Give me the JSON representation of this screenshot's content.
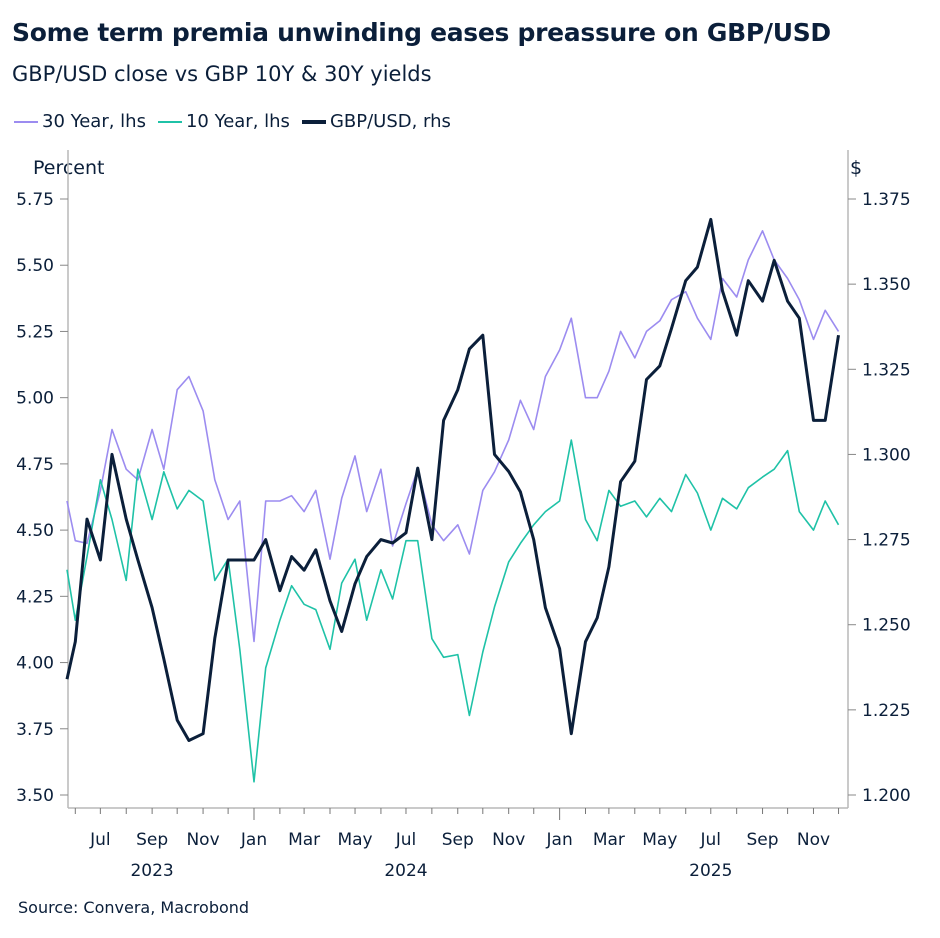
{
  "header": {
    "title": "Some term premia unwinding eases preassure on GBP/USD",
    "subtitle": "GBP/USD close vs GBP 10Y & 30Y yields"
  },
  "source": "Source: Convera, Macrobond",
  "colors": {
    "y30": "#9c8cf0",
    "y10": "#1fc2a7",
    "gbpusd": "#0b1f3a",
    "axis": "#b8b8b8"
  },
  "chart_data": {
    "type": "line",
    "title": "Some term premia unwinding eases preassure on GBP/USD",
    "subtitle": "GBP/USD close vs GBP 10Y & 30Y yields",
    "legend_position": "top-left",
    "grid": false,
    "left_axis": {
      "label": "Percent",
      "range": [
        3.5,
        5.75
      ],
      "ticks": [
        "5.75",
        "5.50",
        "5.25",
        "5.00",
        "4.75",
        "4.50",
        "4.25",
        "4.00",
        "3.75",
        "3.50"
      ]
    },
    "right_axis": {
      "label": "$",
      "range": [
        1.2,
        1.375
      ],
      "ticks": [
        "1.375",
        "1.350",
        "1.325",
        "1.300",
        "1.275",
        "1.250",
        "1.225",
        "1.200"
      ]
    },
    "x_ticks": [
      {
        "label": "Jul",
        "date": "2023-07-01"
      },
      {
        "label": "Sep",
        "date": "2023-09-01"
      },
      {
        "label": "Nov",
        "date": "2023-11-01"
      },
      {
        "label": "Jan",
        "date": "2024-01-01"
      },
      {
        "label": "Mar",
        "date": "2024-03-01"
      },
      {
        "label": "May",
        "date": "2024-05-01"
      },
      {
        "label": "Jul",
        "date": "2024-07-01"
      },
      {
        "label": "Sep",
        "date": "2024-09-01"
      },
      {
        "label": "Nov",
        "date": "2024-11-01"
      },
      {
        "label": "Jan",
        "date": "2025-01-01"
      },
      {
        "label": "Mar",
        "date": "2025-03-01"
      },
      {
        "label": "May",
        "date": "2025-05-01"
      },
      {
        "label": "Jul",
        "date": "2025-07-01"
      },
      {
        "label": "Sep",
        "date": "2025-09-01"
      },
      {
        "label": "Nov",
        "date": "2025-11-01"
      }
    ],
    "x_years": [
      {
        "label": "2023",
        "date": "2023-09-01"
      },
      {
        "label": "2024",
        "date": "2024-07-01"
      },
      {
        "label": "2025",
        "date": "2025-07-01"
      }
    ],
    "x": [
      "2023-05-22",
      "2023-06-01",
      "2023-06-15",
      "2023-07-01",
      "2023-07-15",
      "2023-08-01",
      "2023-08-15",
      "2023-09-01",
      "2023-09-15",
      "2023-10-01",
      "2023-10-15",
      "2023-11-01",
      "2023-11-15",
      "2023-12-01",
      "2023-12-15",
      "2024-01-01",
      "2024-01-15",
      "2024-02-01",
      "2024-02-15",
      "2024-03-01",
      "2024-03-15",
      "2024-04-01",
      "2024-04-15",
      "2024-05-01",
      "2024-05-15",
      "2024-06-01",
      "2024-06-15",
      "2024-07-01",
      "2024-07-15",
      "2024-08-01",
      "2024-08-15",
      "2024-09-01",
      "2024-09-15",
      "2024-10-01",
      "2024-10-15",
      "2024-11-01",
      "2024-11-15",
      "2024-12-01",
      "2024-12-15",
      "2025-01-01",
      "2025-01-15",
      "2025-02-01",
      "2025-02-15",
      "2025-03-01",
      "2025-03-15",
      "2025-04-01",
      "2025-04-15",
      "2025-05-01",
      "2025-05-15",
      "2025-06-01",
      "2025-06-15",
      "2025-07-01",
      "2025-07-15",
      "2025-08-01",
      "2025-08-15",
      "2025-09-01",
      "2025-09-15",
      "2025-10-01",
      "2025-10-15",
      "2025-11-01",
      "2025-11-15",
      "2025-12-01"
    ],
    "series": [
      {
        "name": "30 Year, lhs",
        "axis": "left",
        "color": "#9c8cf0",
        "values": [
          4.61,
          4.46,
          4.45,
          4.65,
          4.88,
          4.73,
          4.69,
          4.88,
          4.73,
          5.03,
          5.08,
          4.95,
          4.69,
          4.54,
          4.61,
          4.08,
          4.61,
          4.61,
          4.63,
          4.57,
          4.65,
          4.39,
          4.62,
          4.78,
          4.57,
          4.73,
          4.44,
          4.6,
          4.73,
          4.52,
          4.46,
          4.52,
          4.41,
          4.65,
          4.72,
          4.84,
          4.99,
          4.88,
          5.08,
          5.18,
          5.3,
          5.0,
          5.0,
          5.1,
          5.25,
          5.15,
          5.25,
          5.29,
          5.37,
          5.4,
          5.3,
          5.22,
          5.45,
          5.38,
          5.52,
          5.63,
          5.52,
          5.45,
          5.37,
          5.22,
          5.33,
          5.25
        ]
      },
      {
        "name": "10 Year, lhs",
        "axis": "left",
        "color": "#1fc2a7",
        "values": [
          4.35,
          4.16,
          4.4,
          4.69,
          4.54,
          4.31,
          4.73,
          4.54,
          4.72,
          4.58,
          4.65,
          4.61,
          4.31,
          4.39,
          4.05,
          3.55,
          3.98,
          4.16,
          4.29,
          4.22,
          4.2,
          4.05,
          4.3,
          4.39,
          4.16,
          4.35,
          4.24,
          4.46,
          4.46,
          4.09,
          4.02,
          4.03,
          3.8,
          4.04,
          4.21,
          4.38,
          4.45,
          4.52,
          4.57,
          4.61,
          4.84,
          4.54,
          4.46,
          4.65,
          4.59,
          4.61,
          4.55,
          4.62,
          4.57,
          4.71,
          4.64,
          4.5,
          4.62,
          4.58,
          4.66,
          4.7,
          4.73,
          4.8,
          4.57,
          4.5,
          4.61,
          4.52
        ]
      },
      {
        "name": "GBP/USD, rhs",
        "axis": "right",
        "color": "#0b1f3a",
        "values": [
          1.234,
          1.245,
          1.281,
          1.269,
          1.3,
          1.281,
          1.269,
          1.255,
          1.24,
          1.222,
          1.216,
          1.218,
          1.246,
          1.269,
          1.269,
          1.269,
          1.275,
          1.26,
          1.27,
          1.266,
          1.272,
          1.257,
          1.248,
          1.262,
          1.27,
          1.275,
          1.274,
          1.277,
          1.296,
          1.275,
          1.31,
          1.319,
          1.331,
          1.335,
          1.3,
          1.295,
          1.289,
          1.275,
          1.255,
          1.243,
          1.218,
          1.245,
          1.252,
          1.267,
          1.292,
          1.298,
          1.322,
          1.326,
          1.337,
          1.351,
          1.355,
          1.369,
          1.348,
          1.335,
          1.351,
          1.345,
          1.357,
          1.345,
          1.34,
          1.31,
          1.31,
          1.335
        ]
      }
    ]
  }
}
